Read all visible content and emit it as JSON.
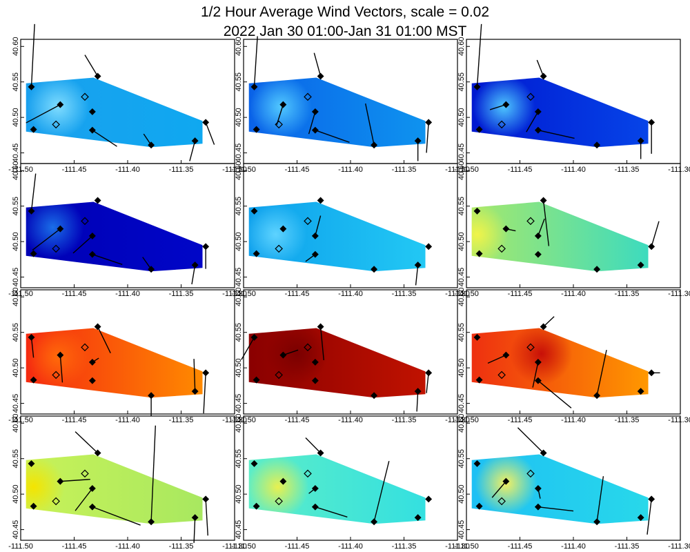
{
  "chart_data": {
    "type": "vector-field-panels",
    "title": "1/2 Hour Average Wind Vectors, scale =  0.02",
    "subtitle": "2022 Jan 30 01:00-Jan 31 01:00 MST",
    "x_ticks": [
      "-111.50",
      "-111.45",
      "-111.40",
      "-111.35",
      "-111.30"
    ],
    "y_ticks": [
      "40.45",
      "40.50",
      "40.55",
      "40.60"
    ],
    "xlim": [
      -111.5,
      -111.3
    ],
    "ylim": [
      40.435,
      40.61
    ],
    "grid": false,
    "layout": {
      "rows": 4,
      "cols": 3
    },
    "boundary": [
      [
        -111.495,
        40.548
      ],
      [
        -111.432,
        40.556
      ],
      [
        -111.33,
        40.495
      ],
      [
        -111.33,
        40.463
      ],
      [
        -111.378,
        40.458
      ],
      [
        -111.495,
        40.48
      ]
    ],
    "stations": [
      {
        "id": "s1",
        "lon": -111.49,
        "lat": 40.543
      },
      {
        "id": "s2",
        "lon": -111.428,
        "lat": 40.558
      },
      {
        "id": "s3",
        "lon": -111.463,
        "lat": 40.518
      },
      {
        "id": "s4",
        "lon": -111.433,
        "lat": 40.508
      },
      {
        "id": "s5",
        "lon": -111.488,
        "lat": 40.483
      },
      {
        "id": "s6",
        "lon": -111.433,
        "lat": 40.482
      },
      {
        "id": "s7",
        "lon": -111.378,
        "lat": 40.461
      },
      {
        "id": "s8",
        "lon": -111.327,
        "lat": 40.493
      },
      {
        "id": "s9",
        "lon": -111.337,
        "lat": 40.467
      }
    ],
    "open_stations": [
      {
        "id": "o1",
        "lon": -111.44,
        "lat": 40.529
      },
      {
        "id": "o2",
        "lon": -111.467,
        "lat": 40.49
      }
    ],
    "panels": [
      {
        "colors": [
          "#1aa0ee",
          "#7fdcff",
          "#0fa8f0"
        ],
        "hot": [
          -111.465,
          40.515
        ],
        "vectors": [
          [
            0,
            0.003,
            0.062
          ],
          [
            1,
            -0.012,
            0.021
          ],
          [
            2,
            -0.032,
            -0.018
          ],
          [
            3,
            0.0,
            0.0
          ],
          [
            4,
            0.0,
            0.0
          ],
          [
            5,
            0.023,
            -0.016
          ],
          [
            6,
            -0.007,
            0.011
          ],
          [
            7,
            0.008,
            -0.022
          ],
          [
            8,
            -0.005,
            -0.02
          ]
        ],
        "open_vectors": [
          [
            0,
            0.0,
            0.0
          ],
          [
            1,
            0.0,
            0.0
          ]
        ]
      },
      {
        "colors": [
          "#0a62e8",
          "#52c9ff",
          "#0e93ef"
        ],
        "hot": [
          -111.465,
          40.515
        ],
        "vectors": [
          [
            0,
            0.003,
            0.05
          ],
          [
            1,
            -0.006,
            0.023
          ],
          [
            2,
            -0.006,
            -0.02
          ],
          [
            3,
            -0.006,
            -0.022
          ],
          [
            4,
            0.0,
            0.0
          ],
          [
            5,
            0.032,
            -0.012
          ],
          [
            6,
            -0.008,
            0.041
          ],
          [
            7,
            -0.002,
            -0.03
          ],
          [
            8,
            0.0,
            -0.02
          ]
        ],
        "open_vectors": [
          [
            0,
            0.0,
            0.0
          ],
          [
            1,
            0.0,
            0.0
          ]
        ]
      },
      {
        "colors": [
          "#0018d0",
          "#4ec6ff",
          "#0644e8"
        ],
        "hot": [
          -111.465,
          40.515
        ],
        "vectors": [
          [
            0,
            0.004,
            0.062
          ],
          [
            1,
            -0.006,
            0.016
          ],
          [
            2,
            -0.015,
            -0.005
          ],
          [
            3,
            -0.011,
            -0.02
          ],
          [
            4,
            0.0,
            0.0
          ],
          [
            5,
            0.034,
            -0.008
          ],
          [
            6,
            0.0,
            0.0
          ],
          [
            7,
            0.0,
            -0.031
          ],
          [
            8,
            0.0,
            -0.018
          ]
        ],
        "open_vectors": [
          [
            0,
            0.0,
            0.0
          ],
          [
            1,
            0.0,
            0.0
          ]
        ]
      },
      {
        "colors": [
          "#0000b4",
          "#1a6ee8",
          "#0006c8"
        ],
        "hot": [
          -111.47,
          40.52
        ],
        "vectors": [
          [
            0,
            0.004,
            0.037
          ],
          [
            1,
            0.0,
            0.0
          ],
          [
            2,
            -0.026,
            -0.021
          ],
          [
            3,
            -0.018,
            -0.017
          ],
          [
            4,
            0.0,
            0.0
          ],
          [
            5,
            0.028,
            -0.01
          ],
          [
            6,
            -0.008,
            0.012
          ],
          [
            7,
            0.0,
            -0.022
          ],
          [
            8,
            -0.003,
            -0.019
          ]
        ],
        "open_vectors": [
          [
            0,
            0.0,
            0.0
          ],
          [
            1,
            0.0,
            0.0
          ]
        ]
      },
      {
        "colors": [
          "#0ea0ec",
          "#5ed3ff",
          "#22c8f4"
        ],
        "hot": [
          -111.47,
          40.51
        ],
        "vectors": [
          [
            0,
            0.0,
            0.0
          ],
          [
            1,
            0.0,
            0.0
          ],
          [
            2,
            0.0,
            0.0
          ],
          [
            3,
            0.005,
            0.02
          ],
          [
            4,
            0.0,
            0.0
          ],
          [
            5,
            -0.009,
            -0.007
          ],
          [
            6,
            0.0,
            0.0
          ],
          [
            7,
            0.0,
            0.0
          ],
          [
            8,
            -0.002,
            -0.02
          ]
        ],
        "open_vectors": [
          [
            0,
            0.0,
            0.0
          ],
          [
            1,
            0.0,
            0.0
          ]
        ]
      },
      {
        "colors": [
          "#a6e86c",
          "#f0f44a",
          "#3ddbbe"
        ],
        "hot": [
          -111.49,
          40.51
        ],
        "vectors": [
          [
            0,
            0.0,
            0.0
          ],
          [
            1,
            0.005,
            -0.045
          ],
          [
            2,
            0.009,
            -0.002
          ],
          [
            3,
            0.006,
            0.017
          ],
          [
            4,
            0.0,
            0.0
          ],
          [
            5,
            0.0,
            0.0
          ],
          [
            6,
            0.0,
            0.0
          ],
          [
            7,
            0.007,
            0.025
          ],
          [
            8,
            0.0,
            0.0
          ]
        ],
        "open_vectors": [
          [
            0,
            0.0,
            0.0
          ],
          [
            1,
            0.0,
            0.0
          ]
        ]
      },
      {
        "colors": [
          "#f52a10",
          "#ff6a0a",
          "#ff8a00"
        ],
        "hot": [
          -111.465,
          40.515
        ],
        "vectors": [
          [
            0,
            0.002,
            -0.02
          ],
          [
            1,
            0.012,
            -0.026
          ],
          [
            2,
            0.002,
            -0.027
          ],
          [
            3,
            0.006,
            0.004
          ],
          [
            4,
            0.0,
            0.0
          ],
          [
            5,
            0.0,
            0.0
          ],
          [
            6,
            0.0,
            -0.02
          ],
          [
            7,
            -0.002,
            -0.04
          ],
          [
            8,
            -0.001,
            0.032
          ]
        ],
        "open_vectors": [
          [
            0,
            0.0,
            0.0
          ],
          [
            1,
            0.0,
            0.0
          ]
        ]
      },
      {
        "colors": [
          "#8a0000",
          "#7a0000",
          "#c01200"
        ],
        "hot": [
          -111.45,
          40.52
        ],
        "vectors": [
          [
            0,
            -0.012,
            -0.022
          ],
          [
            1,
            0.003,
            -0.033
          ],
          [
            2,
            0.014,
            0.005
          ],
          [
            3,
            0.0,
            0.0
          ],
          [
            4,
            0.0,
            0.0
          ],
          [
            5,
            0.0,
            0.0
          ],
          [
            6,
            0.0,
            0.0
          ],
          [
            7,
            -0.002,
            -0.02
          ],
          [
            8,
            -0.001,
            -0.02
          ]
        ],
        "open_vectors": [
          [
            0,
            0.0,
            0.0
          ],
          [
            1,
            0.0,
            0.0
          ]
        ]
      },
      {
        "colors": [
          "#ee3010",
          "#c81008",
          "#ff9800"
        ],
        "hot": [
          -111.43,
          40.52
        ],
        "vectors": [
          [
            0,
            0.0,
            0.0
          ],
          [
            1,
            0.01,
            0.01
          ],
          [
            2,
            -0.017,
            -0.008
          ],
          [
            3,
            -0.005,
            -0.025
          ],
          [
            4,
            0.0,
            0.0
          ],
          [
            5,
            0.031,
            -0.027
          ],
          [
            6,
            0.009,
            0.045
          ],
          [
            7,
            0.008,
            0.0
          ],
          [
            8,
            0.0,
            0.0
          ]
        ],
        "open_vectors": [
          [
            0,
            0.0,
            0.0
          ],
          [
            1,
            0.0,
            0.0
          ]
        ]
      },
      {
        "colors": [
          "#c8f258",
          "#f4e400",
          "#a8e860"
        ],
        "hot": [
          -111.488,
          40.51
        ],
        "vectors": [
          [
            0,
            0.0,
            0.0
          ],
          [
            1,
            -0.021,
            0.021
          ],
          [
            2,
            0.028,
            0.002
          ],
          [
            3,
            -0.016,
            -0.022
          ],
          [
            4,
            0.0,
            0.0
          ],
          [
            5,
            0.045,
            -0.018
          ],
          [
            6,
            0.004,
            0.095
          ],
          [
            7,
            0.002,
            -0.036
          ],
          [
            8,
            -0.001,
            -0.025
          ]
        ],
        "open_vectors": [
          [
            0,
            0.0,
            0.0
          ],
          [
            1,
            0.0,
            0.0
          ]
        ]
      },
      {
        "colors": [
          "#5cedc8",
          "#e8f050",
          "#34e0e0"
        ],
        "hot": [
          -111.468,
          40.51
        ],
        "vectors": [
          [
            0,
            0.0,
            0.0
          ],
          [
            1,
            -0.014,
            0.015
          ],
          [
            2,
            0.0,
            0.0
          ],
          [
            3,
            -0.006,
            -0.005
          ],
          [
            4,
            0.0,
            0.0
          ],
          [
            5,
            0.03,
            -0.01
          ],
          [
            6,
            0.014,
            0.06
          ],
          [
            7,
            0.0,
            0.0
          ],
          [
            8,
            0.0,
            0.0
          ]
        ],
        "open_vectors": [
          [
            0,
            0.0,
            0.0
          ],
          [
            1,
            0.0,
            0.0
          ]
        ]
      },
      {
        "colors": [
          "#1ec0f4",
          "#f4f060",
          "#28d8ea"
        ],
        "hot": [
          -111.463,
          40.515
        ],
        "vectors": [
          [
            0,
            0.0,
            0.0
          ],
          [
            1,
            -0.024,
            0.025
          ],
          [
            2,
            -0.013,
            -0.016
          ],
          [
            3,
            0.002,
            -0.01
          ],
          [
            4,
            0.0,
            0.0
          ],
          [
            5,
            0.033,
            -0.004
          ],
          [
            6,
            0.006,
            0.045
          ],
          [
            7,
            -0.004,
            -0.035
          ],
          [
            8,
            0.0,
            0.0
          ]
        ],
        "open_vectors": [
          [
            0,
            0.0,
            0.0
          ],
          [
            1,
            0.0,
            0.0
          ]
        ]
      }
    ]
  }
}
